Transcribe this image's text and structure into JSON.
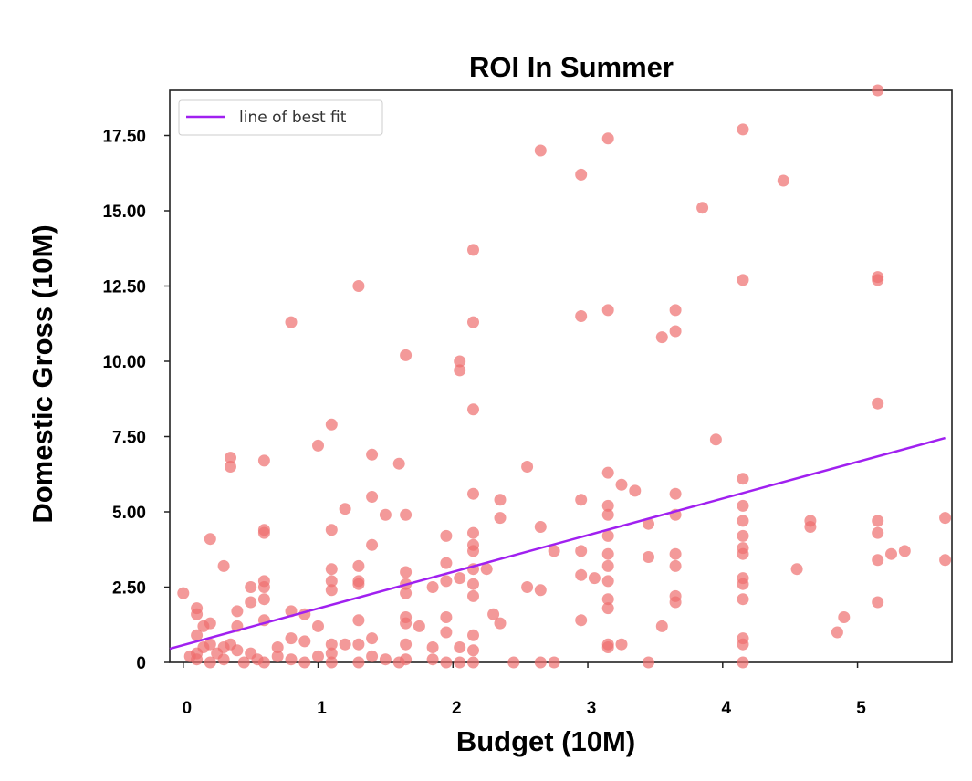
{
  "chart_data": {
    "type": "scatter",
    "title": "ROI In Summer",
    "xlabel": "Budget (10M)",
    "ylabel": "Domestic Gross (10M)",
    "xlim": [
      -0.1,
      5.7
    ],
    "ylim": [
      0,
      19
    ],
    "x_ticks": [
      0,
      1,
      2,
      3,
      4,
      5
    ],
    "x_tick_labels": [
      "0",
      "1",
      "2",
      "3",
      "4",
      "5"
    ],
    "y_ticks": [
      0,
      2.5,
      5,
      7.5,
      10,
      12.5,
      15,
      17.5
    ],
    "y_tick_labels": [
      "0",
      "2.50",
      "5.00",
      "7.50",
      "10.00",
      "12.50",
      "15.00",
      "17.50"
    ],
    "grid": false,
    "legend": {
      "position": "top-left",
      "entries": [
        "line of best fit"
      ]
    },
    "colors": {
      "points": "#ee6e6e",
      "fit_line": "#a020f0"
    },
    "series": [
      {
        "kind": "points",
        "points": [
          [
            0.0,
            2.3
          ],
          [
            0.1,
            1.8
          ],
          [
            0.1,
            1.6
          ],
          [
            0.1,
            0.9
          ],
          [
            0.15,
            1.2
          ],
          [
            0.2,
            1.3
          ],
          [
            0.2,
            0.6
          ],
          [
            0.15,
            0.5
          ],
          [
            0.1,
            0.3
          ],
          [
            0.05,
            0.2
          ],
          [
            0.1,
            0.1
          ],
          [
            0.2,
            0.0
          ],
          [
            0.25,
            0.3
          ],
          [
            0.3,
            0.5
          ],
          [
            0.35,
            0.6
          ],
          [
            0.3,
            0.1
          ],
          [
            0.4,
            0.4
          ],
          [
            0.45,
            0.0
          ],
          [
            0.2,
            4.1
          ],
          [
            0.3,
            3.2
          ],
          [
            0.35,
            6.8
          ],
          [
            0.35,
            6.5
          ],
          [
            0.4,
            1.7
          ],
          [
            0.4,
            1.2
          ],
          [
            0.5,
            2.5
          ],
          [
            0.5,
            2.0
          ],
          [
            0.5,
            0.3
          ],
          [
            0.55,
            0.1
          ],
          [
            0.6,
            4.4
          ],
          [
            0.6,
            4.3
          ],
          [
            0.6,
            6.7
          ],
          [
            0.6,
            2.7
          ],
          [
            0.6,
            2.5
          ],
          [
            0.6,
            2.1
          ],
          [
            0.6,
            1.4
          ],
          [
            0.6,
            0.0
          ],
          [
            0.7,
            0.5
          ],
          [
            0.7,
            0.2
          ],
          [
            0.8,
            11.3
          ],
          [
            0.8,
            1.7
          ],
          [
            0.8,
            0.8
          ],
          [
            0.8,
            0.1
          ],
          [
            0.9,
            1.6
          ],
          [
            0.9,
            0.7
          ],
          [
            0.9,
            0.0
          ],
          [
            1.0,
            7.2
          ],
          [
            1.0,
            1.2
          ],
          [
            1.0,
            0.2
          ],
          [
            1.1,
            7.9
          ],
          [
            1.1,
            4.4
          ],
          [
            1.1,
            3.1
          ],
          [
            1.1,
            2.7
          ],
          [
            1.1,
            2.4
          ],
          [
            1.1,
            0.6
          ],
          [
            1.1,
            0.3
          ],
          [
            1.1,
            0.0
          ],
          [
            1.2,
            5.1
          ],
          [
            1.2,
            0.6
          ],
          [
            1.3,
            12.5
          ],
          [
            1.3,
            3.2
          ],
          [
            1.3,
            2.6
          ],
          [
            1.3,
            2.7
          ],
          [
            1.3,
            1.4
          ],
          [
            1.3,
            0.6
          ],
          [
            1.3,
            0.0
          ],
          [
            1.4,
            6.9
          ],
          [
            1.4,
            5.5
          ],
          [
            1.4,
            3.9
          ],
          [
            1.4,
            0.8
          ],
          [
            1.4,
            0.2
          ],
          [
            1.5,
            4.9
          ],
          [
            1.5,
            0.1
          ],
          [
            1.6,
            6.6
          ],
          [
            1.6,
            0.0
          ],
          [
            1.65,
            10.2
          ],
          [
            1.65,
            4.9
          ],
          [
            1.65,
            3.0
          ],
          [
            1.65,
            2.6
          ],
          [
            1.65,
            2.3
          ],
          [
            1.65,
            1.5
          ],
          [
            1.65,
            1.3
          ],
          [
            1.65,
            0.6
          ],
          [
            1.65,
            0.1
          ],
          [
            1.75,
            1.2
          ],
          [
            1.85,
            2.5
          ],
          [
            1.85,
            0.5
          ],
          [
            1.85,
            0.1
          ],
          [
            1.95,
            4.2
          ],
          [
            1.95,
            3.3
          ],
          [
            1.95,
            2.7
          ],
          [
            1.95,
            1.5
          ],
          [
            1.95,
            1.0
          ],
          [
            1.95,
            0.0
          ],
          [
            2.05,
            10.0
          ],
          [
            2.05,
            9.7
          ],
          [
            2.05,
            2.8
          ],
          [
            2.05,
            0.5
          ],
          [
            2.05,
            0.0
          ],
          [
            2.15,
            13.7
          ],
          [
            2.15,
            11.3
          ],
          [
            2.15,
            8.4
          ],
          [
            2.15,
            5.6
          ],
          [
            2.15,
            4.3
          ],
          [
            2.15,
            3.9
          ],
          [
            2.15,
            3.7
          ],
          [
            2.15,
            3.1
          ],
          [
            2.15,
            2.6
          ],
          [
            2.15,
            2.2
          ],
          [
            2.15,
            0.9
          ],
          [
            2.15,
            0.4
          ],
          [
            2.15,
            0.0
          ],
          [
            2.25,
            3.1
          ],
          [
            2.3,
            1.6
          ],
          [
            2.35,
            5.4
          ],
          [
            2.35,
            4.8
          ],
          [
            2.35,
            1.3
          ],
          [
            2.45,
            0.0
          ],
          [
            2.55,
            6.5
          ],
          [
            2.55,
            2.5
          ],
          [
            2.65,
            17.0
          ],
          [
            2.65,
            4.5
          ],
          [
            2.65,
            2.4
          ],
          [
            2.65,
            0.0
          ],
          [
            2.75,
            3.7
          ],
          [
            2.75,
            0.0
          ],
          [
            2.95,
            16.2
          ],
          [
            2.95,
            11.5
          ],
          [
            2.95,
            5.4
          ],
          [
            2.95,
            3.7
          ],
          [
            2.95,
            2.9
          ],
          [
            2.95,
            1.4
          ],
          [
            3.05,
            2.8
          ],
          [
            3.15,
            17.4
          ],
          [
            3.15,
            11.7
          ],
          [
            3.15,
            6.3
          ],
          [
            3.15,
            5.2
          ],
          [
            3.15,
            4.9
          ],
          [
            3.15,
            4.2
          ],
          [
            3.15,
            3.6
          ],
          [
            3.15,
            3.2
          ],
          [
            3.15,
            2.7
          ],
          [
            3.15,
            2.1
          ],
          [
            3.15,
            1.8
          ],
          [
            3.15,
            0.6
          ],
          [
            3.15,
            0.5
          ],
          [
            3.25,
            5.9
          ],
          [
            3.25,
            0.6
          ],
          [
            3.35,
            5.7
          ],
          [
            3.45,
            4.6
          ],
          [
            3.45,
            3.5
          ],
          [
            3.45,
            0.0
          ],
          [
            3.55,
            10.8
          ],
          [
            3.55,
            1.2
          ],
          [
            3.65,
            11.7
          ],
          [
            3.65,
            11.0
          ],
          [
            3.65,
            5.6
          ],
          [
            3.65,
            4.9
          ],
          [
            3.65,
            3.6
          ],
          [
            3.65,
            3.2
          ],
          [
            3.65,
            2.2
          ],
          [
            3.65,
            2.0
          ],
          [
            3.85,
            15.1
          ],
          [
            3.95,
            7.4
          ],
          [
            4.15,
            17.7
          ],
          [
            4.15,
            12.7
          ],
          [
            4.15,
            6.1
          ],
          [
            4.15,
            5.2
          ],
          [
            4.15,
            4.7
          ],
          [
            4.15,
            4.2
          ],
          [
            4.15,
            3.8
          ],
          [
            4.15,
            3.6
          ],
          [
            4.15,
            2.8
          ],
          [
            4.15,
            2.6
          ],
          [
            4.15,
            2.1
          ],
          [
            4.15,
            0.8
          ],
          [
            4.15,
            0.6
          ],
          [
            4.15,
            0.0
          ],
          [
            4.45,
            16.0
          ],
          [
            4.55,
            3.1
          ],
          [
            4.65,
            4.7
          ],
          [
            4.65,
            4.5
          ],
          [
            4.85,
            1.0
          ],
          [
            4.9,
            1.5
          ],
          [
            5.15,
            19.0
          ],
          [
            5.15,
            12.8
          ],
          [
            5.15,
            12.7
          ],
          [
            5.15,
            8.6
          ],
          [
            5.15,
            4.7
          ],
          [
            5.15,
            4.3
          ],
          [
            5.15,
            3.4
          ],
          [
            5.15,
            2.0
          ],
          [
            5.25,
            3.6
          ],
          [
            5.35,
            3.7
          ],
          [
            5.65,
            4.8
          ],
          [
            5.65,
            3.4
          ]
        ]
      },
      {
        "kind": "line",
        "name": "line of best fit",
        "points": [
          [
            -0.1,
            0.45
          ],
          [
            5.65,
            7.45
          ]
        ]
      }
    ]
  }
}
